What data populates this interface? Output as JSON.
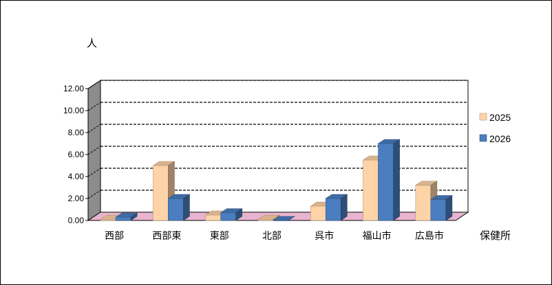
{
  "chart_data": {
    "type": "bar",
    "ylabel": "人",
    "xlabel": "保健所",
    "categories": [
      "西部",
      "西部東",
      "東部",
      "北部",
      "呉市",
      "福山市",
      "広島市"
    ],
    "series": [
      {
        "name": "2025",
        "values": [
          0.1,
          5.0,
          0.5,
          0.1,
          1.3,
          5.5,
          3.2
        ],
        "color": "#FFD3A8"
      },
      {
        "name": "2026",
        "values": [
          0.3,
          2.0,
          0.7,
          0.0,
          2.0,
          7.0,
          1.9
        ],
        "color": "#4A7EC0"
      }
    ],
    "ylim": [
      0,
      12
    ],
    "yticks": [
      "0.00",
      "2.00",
      "4.00",
      "6.00",
      "8.00",
      "10.00",
      "12.00"
    ],
    "grid": true,
    "legend_position": "right",
    "three_d": true,
    "floor_color": "#E8B4CF",
    "wall_color": "#8C8C8C"
  }
}
